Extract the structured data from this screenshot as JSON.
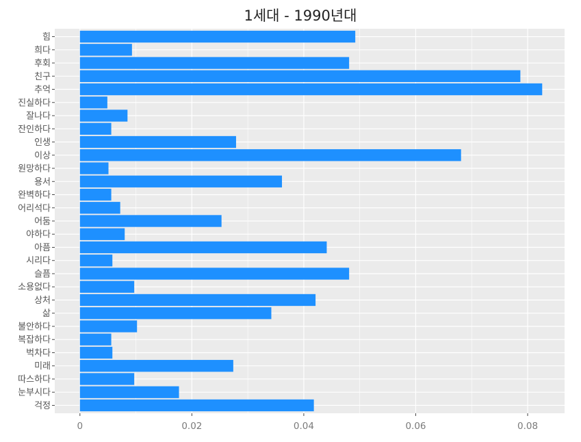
{
  "chart_data": {
    "type": "bar",
    "orientation": "horizontal",
    "title": "1세대 - 1990년대",
    "xlabel": "",
    "ylabel": "",
    "xlim": [
      -0.0045,
      0.0866
    ],
    "x_ticks": [
      {
        "value": 0,
        "label": "0"
      },
      {
        "value": 0.02,
        "label": "0.02"
      },
      {
        "value": 0.04,
        "label": "0.04"
      },
      {
        "value": 0.06,
        "label": "0.06"
      },
      {
        "value": 0.08,
        "label": "0.08"
      }
    ],
    "grid": true,
    "bar_color": "#1E90FF",
    "panel_color": "#EBEBEB",
    "categories": [
      "힘",
      "희다",
      "후회",
      "친구",
      "추억",
      "진실하다",
      "잘나다",
      "잔인하다",
      "인생",
      "이상",
      "원망하다",
      "용서",
      "완벽하다",
      "어리석다",
      "어둠",
      "야하다",
      "아픔",
      "시리다",
      "슬픔",
      "소용없다",
      "상처",
      "삶",
      "불안하다",
      "복잡하다",
      "벅차다",
      "미래",
      "따스하다",
      "눈부시다",
      "걱정"
    ],
    "values": [
      0.0492,
      0.0093,
      0.0481,
      0.0787,
      0.0826,
      0.0049,
      0.0085,
      0.0056,
      0.0279,
      0.0681,
      0.0051,
      0.0361,
      0.0056,
      0.0072,
      0.0253,
      0.008,
      0.0441,
      0.0058,
      0.0481,
      0.0097,
      0.0421,
      0.0342,
      0.0102,
      0.0056,
      0.0058,
      0.0274,
      0.0097,
      0.0177,
      0.0418
    ]
  }
}
